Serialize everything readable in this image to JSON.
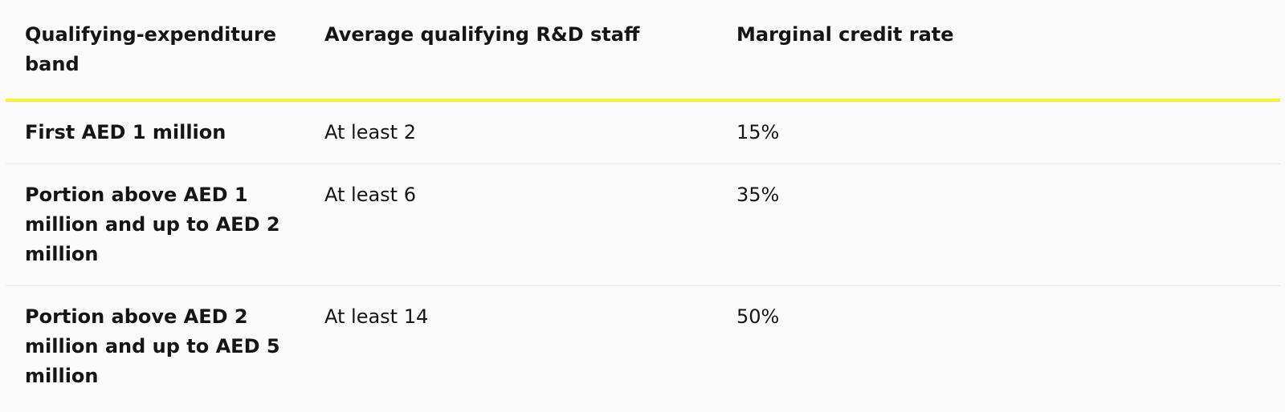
{
  "table": {
    "headers": [
      "Qualifying-expenditure band",
      "Average qualifying R&D staff",
      "Marginal credit rate"
    ],
    "rows": [
      {
        "band": "First AED 1 million",
        "staff": "At least 2",
        "rate": "15%"
      },
      {
        "band": "Portion above AED 1 million and up to AED 2 million",
        "staff": "At least 6",
        "rate": "35%"
      },
      {
        "band": "Portion above AED 2 million and up to AED 5 million",
        "staff": "At least 14",
        "rate": "50%"
      }
    ],
    "accent_color": "#ffef2e"
  }
}
